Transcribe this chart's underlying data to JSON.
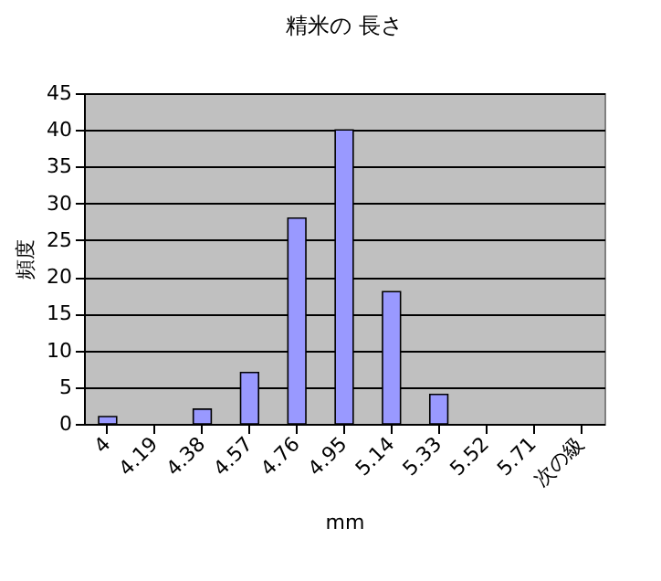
{
  "chart_data": {
    "type": "bar",
    "title": "精米の 長さ",
    "xlabel": "mm",
    "ylabel": "頻度",
    "categories": [
      "4",
      "4.19",
      "4.38",
      "4.57",
      "4.76",
      "4.95",
      "5.14",
      "5.33",
      "5.52",
      "5.71",
      "次の級"
    ],
    "values": [
      1,
      0,
      2,
      7,
      28,
      40,
      18,
      4,
      0,
      0,
      0
    ],
    "color": "#9999ff",
    "ylim": [
      0,
      45
    ],
    "yticks": [
      0,
      5,
      10,
      15,
      20,
      25,
      30,
      35,
      40,
      45
    ],
    "grid": "y"
  }
}
